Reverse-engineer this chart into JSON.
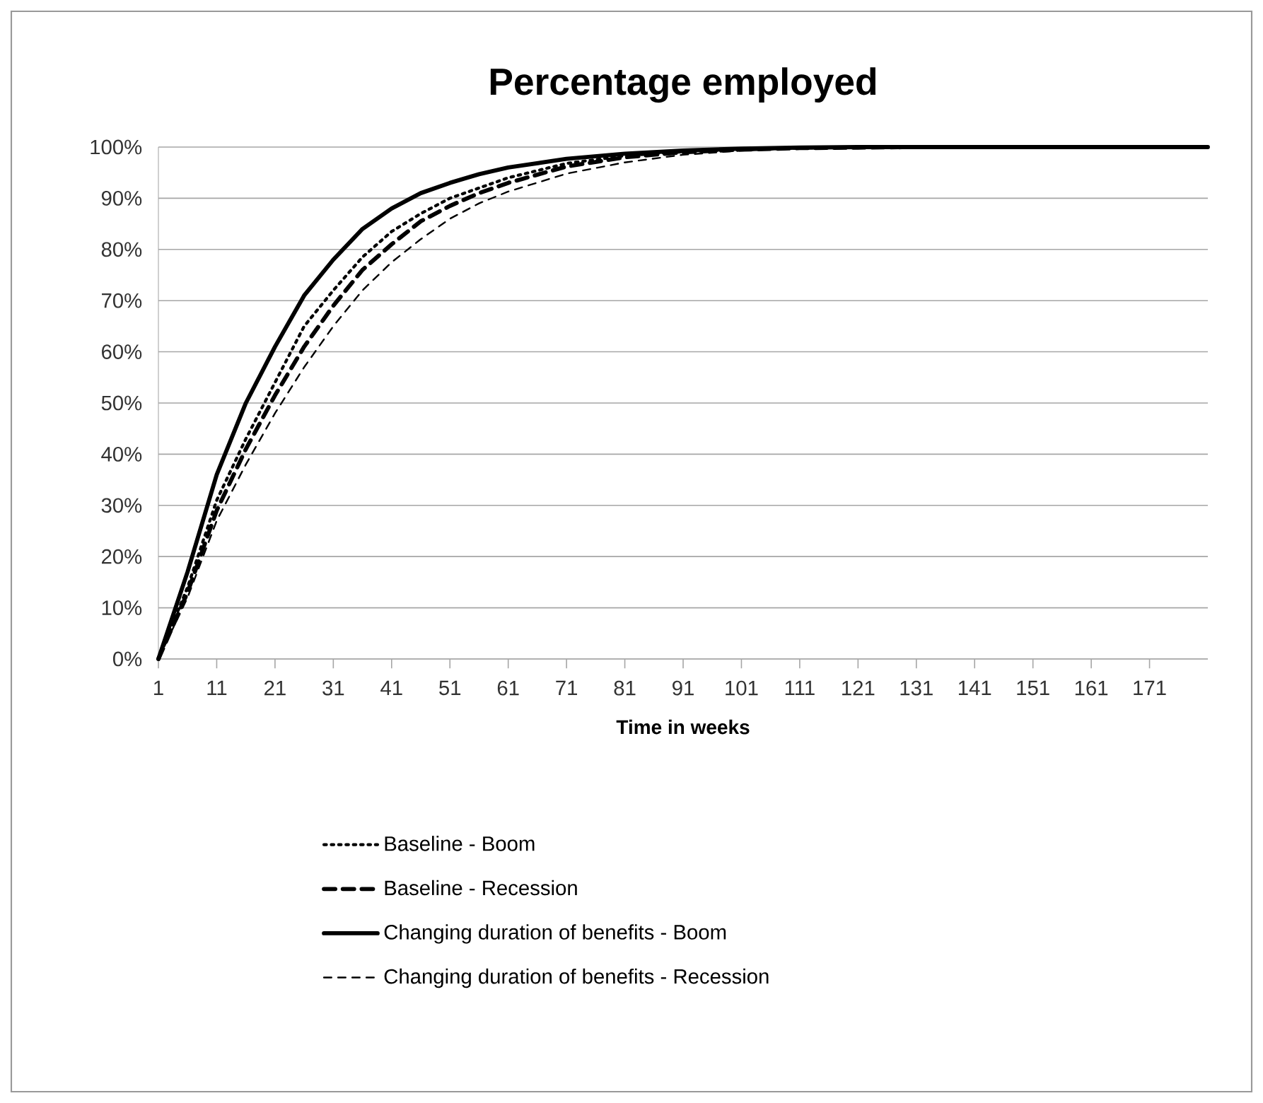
{
  "chart_data": {
    "type": "line",
    "title": "Percentage employed",
    "xlabel": "Time in weeks",
    "x": [
      1,
      6,
      11,
      16,
      21,
      26,
      31,
      36,
      41,
      46,
      51,
      56,
      61,
      71,
      81,
      91,
      101,
      111,
      121,
      131,
      181
    ],
    "series": [
      {
        "name": "Baseline - Boom",
        "color": "#000000",
        "line_style": "dotted",
        "values": [
          0,
          14,
          31,
          43,
          54,
          65,
          72,
          78.5,
          83.5,
          87,
          90,
          92,
          94,
          96.8,
          98.3,
          99.1,
          99.5,
          99.8,
          100,
          100,
          100
        ]
      },
      {
        "name": "Baseline - Recession",
        "color": "#000000",
        "line_style": "dashed",
        "values": [
          0,
          13,
          29,
          41,
          51.5,
          61,
          69,
          76,
          81,
          85.5,
          88.5,
          91,
          93,
          96.2,
          98,
          99,
          99.5,
          99.8,
          99.9,
          100,
          100
        ]
      },
      {
        "name": "Changing duration of benefits - Boom",
        "color": "#000000",
        "line_style": "solid",
        "values": [
          0,
          17,
          36,
          50,
          61,
          71,
          78,
          84,
          88,
          91,
          93,
          94.7,
          96,
          97.7,
          98.7,
          99.3,
          99.7,
          99.9,
          100,
          100,
          100
        ]
      },
      {
        "name": "Changing duration of benefits - Recession",
        "color": "#000000",
        "line_style": "dashed",
        "values": [
          0,
          12,
          27,
          38,
          48,
          57,
          65,
          72,
          77.5,
          82,
          86,
          89,
          91.3,
          94.8,
          97,
          98.5,
          99.3,
          99.7,
          99.9,
          100,
          100
        ]
      }
    ],
    "xlim": [
      1,
      181
    ],
    "xticks": [
      1,
      11,
      21,
      31,
      41,
      51,
      61,
      71,
      81,
      91,
      101,
      111,
      121,
      131,
      141,
      151,
      161,
      171
    ],
    "ylim": [
      0,
      100
    ],
    "yticks": [
      {
        "value": 0,
        "label": "0%"
      },
      {
        "value": 10,
        "label": "10%"
      },
      {
        "value": 20,
        "label": "20%"
      },
      {
        "value": 30,
        "label": "30%"
      },
      {
        "value": 40,
        "label": "40%"
      },
      {
        "value": 50,
        "label": "50%"
      },
      {
        "value": 60,
        "label": "60%"
      },
      {
        "value": 70,
        "label": "70%"
      },
      {
        "value": 80,
        "label": "80%"
      },
      {
        "value": 90,
        "label": "90%"
      },
      {
        "value": 100,
        "label": "100%"
      }
    ],
    "grid": "y",
    "legend": "bottom",
    "marker": "none"
  }
}
